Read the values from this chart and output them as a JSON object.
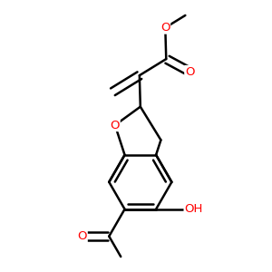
{
  "background_color": "#ffffff",
  "bond_color": "#000000",
  "atom_colors": {
    "O": "#ff0000",
    "C": "#000000"
  },
  "line_width": 1.8,
  "figsize": [
    3.0,
    3.0
  ],
  "dpi": 100
}
